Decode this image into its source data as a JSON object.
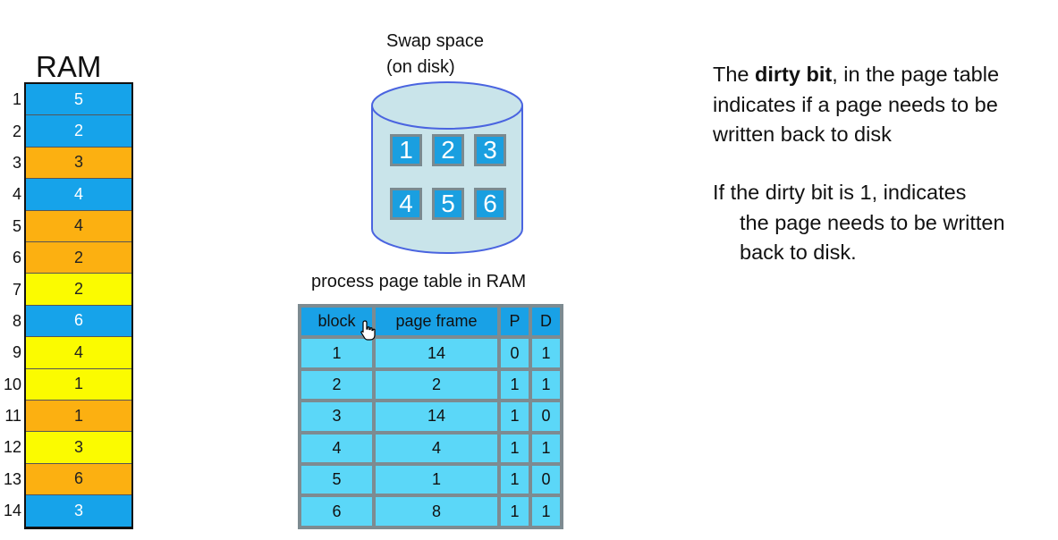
{
  "ram": {
    "title": "RAM",
    "rows": [
      {
        "num": "1",
        "value": "5",
        "color": "#16a3ea"
      },
      {
        "num": "2",
        "value": "2",
        "color": "#16a3ea"
      },
      {
        "num": "3",
        "value": "3",
        "color": "#fcb011"
      },
      {
        "num": "4",
        "value": "4",
        "color": "#16a3ea"
      },
      {
        "num": "5",
        "value": "4",
        "color": "#fcb011"
      },
      {
        "num": "6",
        "value": "2",
        "color": "#fcb011"
      },
      {
        "num": "7",
        "value": "2",
        "color": "#fbfb00"
      },
      {
        "num": "8",
        "value": "6",
        "color": "#16a3ea"
      },
      {
        "num": "9",
        "value": "4",
        "color": "#fbfb00"
      },
      {
        "num": "10",
        "value": "1",
        "color": "#fbfb00"
      },
      {
        "num": "11",
        "value": "1",
        "color": "#fcb011"
      },
      {
        "num": "12",
        "value": "3",
        "color": "#fbfb00"
      },
      {
        "num": "13",
        "value": "6",
        "color": "#fcb011"
      },
      {
        "num": "14",
        "value": "3",
        "color": "#16a3ea"
      }
    ]
  },
  "swap": {
    "label_line1": "Swap space",
    "label_line2": "(on disk)",
    "pages": [
      "1",
      "2",
      "3",
      "4",
      "5",
      "6"
    ]
  },
  "page_table": {
    "caption": "process page table in RAM",
    "headers": [
      "block",
      "page frame",
      "P",
      "D"
    ],
    "rows": [
      [
        "1",
        "14",
        "0",
        "1"
      ],
      [
        "2",
        "2",
        "1",
        "1"
      ],
      [
        "3",
        "14",
        "1",
        "0"
      ],
      [
        "4",
        "4",
        "1",
        "1"
      ],
      [
        "5",
        "1",
        "1",
        "0"
      ],
      [
        "6",
        "8",
        "1",
        "1"
      ]
    ]
  },
  "notes": {
    "n1_pre": "The ",
    "n1_bold": "dirty bit",
    "n1_post": ", in the page table indicates if a page needs to be written back to disk",
    "n2_line1": "If the dirty bit is 1, indicates",
    "n2_line2": "the page needs to be written back to disk."
  },
  "colors": {
    "blue": "#16a3ea",
    "orange": "#fcb011",
    "yellow": "#fbfb00",
    "header_blue": "#19a1e6",
    "cell_cyan": "#5bd7f8",
    "disk_fill": "#c9e4ea",
    "disk_stroke": "#4a64e0"
  }
}
